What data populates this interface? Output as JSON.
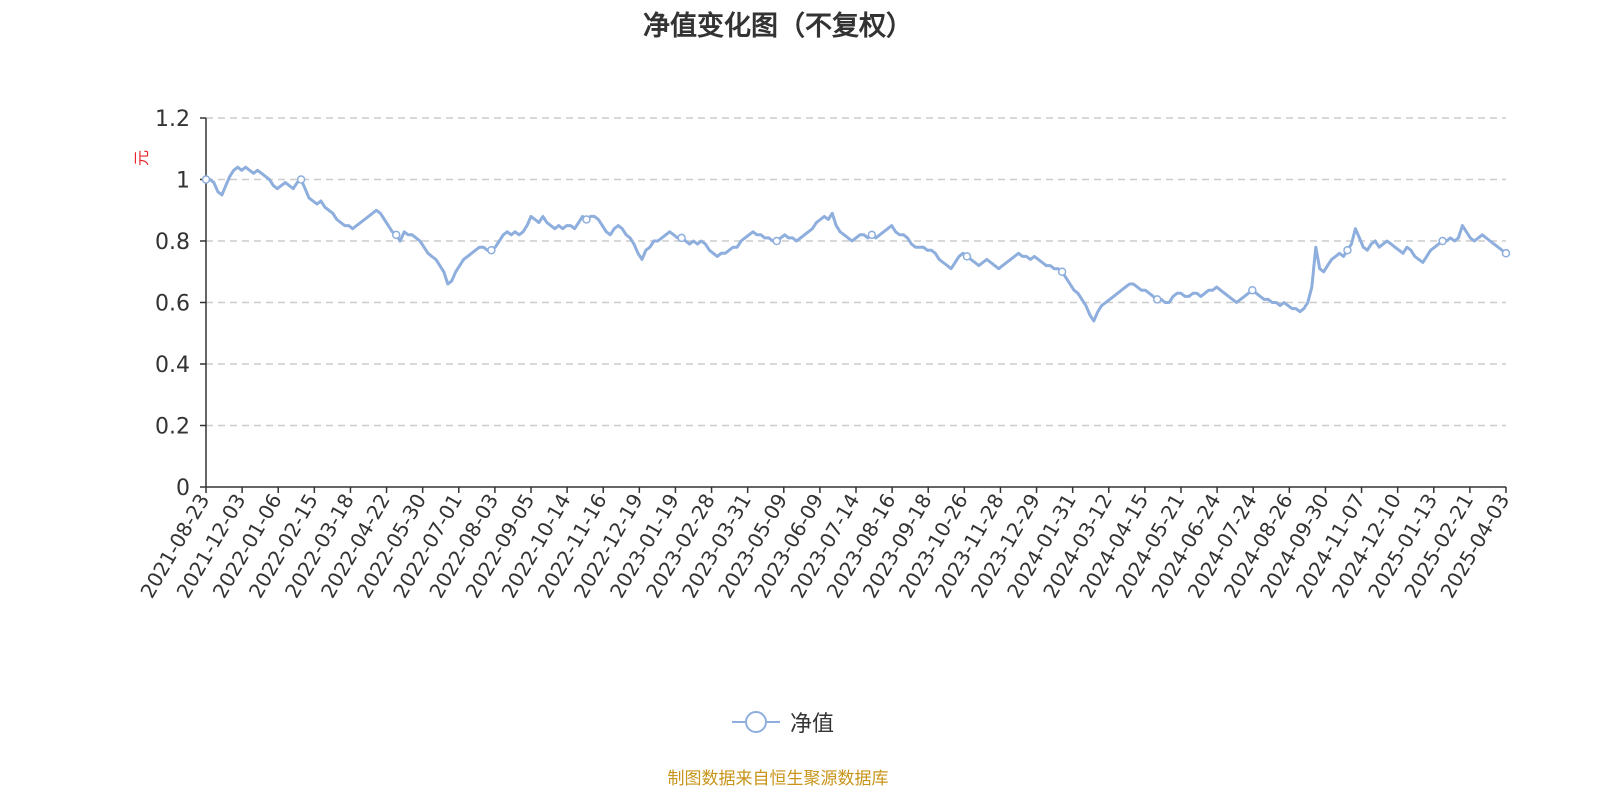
{
  "colors": {
    "line": "#8eaedd",
    "axis": "#333333",
    "grid": "#cccccc",
    "unit": "#e8262c",
    "source": "#c8941a"
  },
  "legend": {
    "label": "净值",
    "icon": "circle-line-icon"
  },
  "source_note": "制图数据来自恒生聚源数据库",
  "chart_data": {
    "type": "line",
    "title": "净值变化图（不复权）",
    "ylabel": "元",
    "ylim": [
      0,
      1.2
    ],
    "yticks": [
      "0",
      "0.2",
      "0.4",
      "0.6",
      "0.8",
      "1",
      "1.2"
    ],
    "grid": true,
    "legend_position": "bottom-center",
    "x_tick_labels": [
      "2021-08-23",
      "2021-12-03",
      "2022-01-06",
      "2022-02-15",
      "2022-03-18",
      "2022-04-22",
      "2022-05-30",
      "2022-07-01",
      "2022-08-03",
      "2022-09-05",
      "2022-10-14",
      "2022-11-16",
      "2022-12-19",
      "2023-01-19",
      "2023-02-28",
      "2023-03-31",
      "2023-05-09",
      "2023-06-09",
      "2023-07-14",
      "2023-08-16",
      "2023-09-18",
      "2023-10-26",
      "2023-11-28",
      "2023-12-29",
      "2024-01-31",
      "2024-03-12",
      "2024-04-15",
      "2024-05-21",
      "2024-06-24",
      "2024-07-24",
      "2024-08-26",
      "2024-09-30",
      "2024-11-07",
      "2024-12-10",
      "2025-01-13",
      "2025-02-21",
      "2025-04-03"
    ],
    "series": [
      {
        "name": "净值",
        "marker_index_step": 24,
        "values": [
          1.0,
          1.0,
          0.99,
          0.96,
          0.95,
          0.98,
          1.01,
          1.03,
          1.04,
          1.03,
          1.04,
          1.03,
          1.02,
          1.03,
          1.02,
          1.01,
          1.0,
          0.98,
          0.97,
          0.98,
          0.99,
          0.98,
          0.97,
          0.99,
          1.0,
          0.97,
          0.94,
          0.93,
          0.92,
          0.93,
          0.91,
          0.9,
          0.89,
          0.87,
          0.86,
          0.85,
          0.85,
          0.84,
          0.85,
          0.86,
          0.87,
          0.88,
          0.89,
          0.9,
          0.89,
          0.87,
          0.85,
          0.83,
          0.82,
          0.8,
          0.83,
          0.82,
          0.82,
          0.81,
          0.8,
          0.78,
          0.76,
          0.75,
          0.74,
          0.72,
          0.7,
          0.66,
          0.67,
          0.7,
          0.72,
          0.74,
          0.75,
          0.76,
          0.77,
          0.78,
          0.78,
          0.77,
          0.77,
          0.78,
          0.8,
          0.82,
          0.83,
          0.82,
          0.83,
          0.82,
          0.83,
          0.85,
          0.88,
          0.87,
          0.86,
          0.88,
          0.86,
          0.85,
          0.84,
          0.85,
          0.84,
          0.85,
          0.85,
          0.84,
          0.86,
          0.88,
          0.87,
          0.88,
          0.88,
          0.87,
          0.85,
          0.83,
          0.82,
          0.84,
          0.85,
          0.84,
          0.82,
          0.81,
          0.79,
          0.76,
          0.74,
          0.77,
          0.78,
          0.8,
          0.8,
          0.81,
          0.82,
          0.83,
          0.82,
          0.81,
          0.81,
          0.8,
          0.79,
          0.8,
          0.79,
          0.8,
          0.79,
          0.77,
          0.76,
          0.75,
          0.76,
          0.76,
          0.77,
          0.78,
          0.78,
          0.8,
          0.81,
          0.82,
          0.83,
          0.82,
          0.82,
          0.81,
          0.81,
          0.8,
          0.8,
          0.81,
          0.82,
          0.81,
          0.81,
          0.8,
          0.81,
          0.82,
          0.83,
          0.84,
          0.86,
          0.87,
          0.88,
          0.87,
          0.89,
          0.85,
          0.83,
          0.82,
          0.81,
          0.8,
          0.81,
          0.82,
          0.82,
          0.81,
          0.82,
          0.81,
          0.82,
          0.83,
          0.84,
          0.85,
          0.83,
          0.82,
          0.82,
          0.81,
          0.79,
          0.78,
          0.78,
          0.78,
          0.77,
          0.77,
          0.76,
          0.74,
          0.73,
          0.72,
          0.71,
          0.73,
          0.75,
          0.76,
          0.75,
          0.74,
          0.73,
          0.72,
          0.73,
          0.74,
          0.73,
          0.72,
          0.71,
          0.72,
          0.73,
          0.74,
          0.75,
          0.76,
          0.75,
          0.75,
          0.74,
          0.75,
          0.74,
          0.73,
          0.72,
          0.72,
          0.71,
          0.71,
          0.7,
          0.68,
          0.66,
          0.64,
          0.63,
          0.61,
          0.59,
          0.56,
          0.54,
          0.57,
          0.59,
          0.6,
          0.61,
          0.62,
          0.63,
          0.64,
          0.65,
          0.66,
          0.66,
          0.65,
          0.64,
          0.64,
          0.63,
          0.62,
          0.61,
          0.61,
          0.6,
          0.6,
          0.62,
          0.63,
          0.63,
          0.62,
          0.62,
          0.63,
          0.63,
          0.62,
          0.63,
          0.64,
          0.64,
          0.65,
          0.64,
          0.63,
          0.62,
          0.61,
          0.6,
          0.61,
          0.62,
          0.63,
          0.64,
          0.63,
          0.62,
          0.61,
          0.61,
          0.6,
          0.6,
          0.59,
          0.6,
          0.59,
          0.58,
          0.58,
          0.57,
          0.58,
          0.6,
          0.65,
          0.78,
          0.71,
          0.7,
          0.72,
          0.74,
          0.75,
          0.76,
          0.75,
          0.77,
          0.79,
          0.84,
          0.81,
          0.78,
          0.77,
          0.79,
          0.8,
          0.78,
          0.79,
          0.8,
          0.79,
          0.78,
          0.77,
          0.76,
          0.78,
          0.77,
          0.75,
          0.74,
          0.73,
          0.75,
          0.77,
          0.78,
          0.79,
          0.8,
          0.8,
          0.81,
          0.8,
          0.81,
          0.85,
          0.83,
          0.81,
          0.8,
          0.81,
          0.82,
          0.81,
          0.8,
          0.79,
          0.78,
          0.77,
          0.76
        ]
      }
    ]
  }
}
